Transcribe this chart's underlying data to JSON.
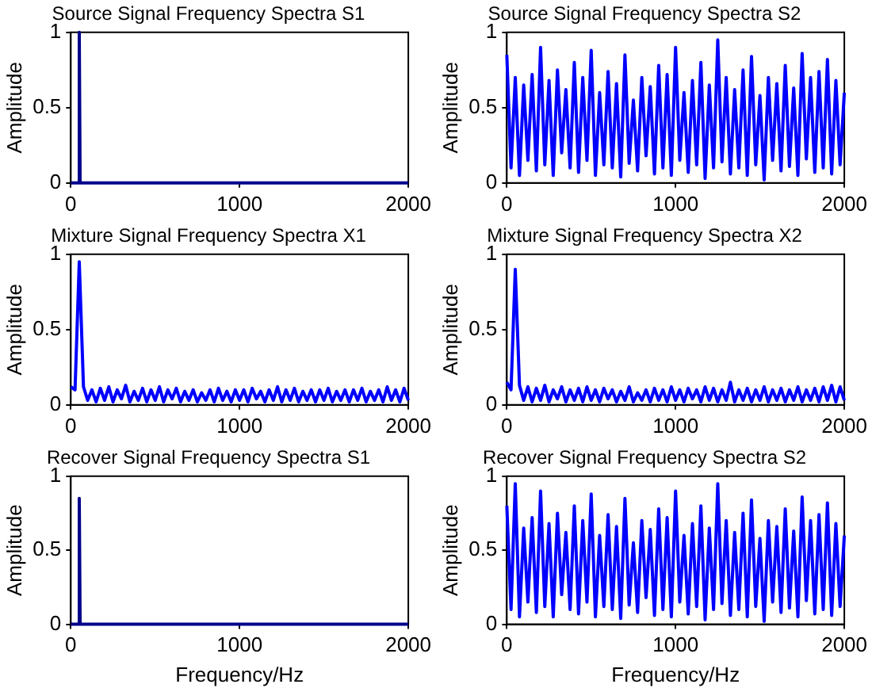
{
  "chart_data": [
    {
      "type": "line",
      "title": "Source Signal Frequency Spectra S1",
      "ylabel": "Amplitude",
      "x": [
        0,
        45,
        50,
        55,
        2000
      ],
      "values": [
        0,
        0,
        1,
        0,
        0
      ],
      "color": "#00008b",
      "xlim": [
        0,
        2000
      ],
      "xticks": [
        0,
        1000,
        2000
      ],
      "ylim": [
        0,
        1
      ],
      "yticks": [
        0,
        0.5,
        1
      ],
      "marker": "none",
      "grid": false
    },
    {
      "type": "line",
      "title": "Source Signal Frequency Spectra S2",
      "ylabel": "Amplitude",
      "x": [
        0,
        25,
        50,
        75,
        100,
        125,
        150,
        175,
        200,
        225,
        250,
        275,
        300,
        325,
        350,
        375,
        400,
        425,
        450,
        475,
        500,
        525,
        550,
        575,
        600,
        625,
        650,
        675,
        700,
        725,
        750,
        775,
        800,
        825,
        850,
        875,
        900,
        925,
        950,
        975,
        1000,
        1025,
        1050,
        1075,
        1100,
        1125,
        1150,
        1175,
        1200,
        1225,
        1250,
        1275,
        1300,
        1325,
        1350,
        1375,
        1400,
        1425,
        1450,
        1475,
        1500,
        1525,
        1550,
        1575,
        1600,
        1625,
        1650,
        1675,
        1700,
        1725,
        1750,
        1775,
        1800,
        1825,
        1850,
        1875,
        1900,
        1925,
        1950,
        1975,
        2000
      ],
      "values": [
        0.85,
        0.1,
        0.7,
        0.05,
        0.65,
        0.15,
        0.72,
        0.08,
        0.9,
        0.12,
        0.68,
        0.05,
        0.75,
        0.2,
        0.62,
        0.1,
        0.8,
        0.07,
        0.7,
        0.15,
        0.88,
        0.05,
        0.6,
        0.12,
        0.74,
        0.1,
        0.66,
        0.04,
        0.85,
        0.13,
        0.55,
        0.08,
        0.7,
        0.18,
        0.64,
        0.06,
        0.78,
        0.1,
        0.72,
        0.05,
        0.9,
        0.15,
        0.6,
        0.07,
        0.68,
        0.12,
        0.8,
        0.03,
        0.65,
        0.1,
        0.95,
        0.14,
        0.7,
        0.06,
        0.62,
        0.1,
        0.75,
        0.05,
        0.84,
        0.12,
        0.58,
        0.02,
        0.7,
        0.15,
        0.66,
        0.08,
        0.78,
        0.11,
        0.63,
        0.05,
        0.86,
        0.16,
        0.7,
        0.07,
        0.74,
        0.1,
        0.82,
        0.06,
        0.68,
        0.12,
        0.6
      ],
      "color": "#0000ff",
      "xlim": [
        0,
        2000
      ],
      "xticks": [
        0,
        1000,
        2000
      ],
      "ylim": [
        0,
        1
      ],
      "yticks": [
        0,
        0.5,
        1
      ],
      "marker": "none",
      "grid": false
    },
    {
      "type": "line",
      "title": "Mixture Signal Frequency Spectra X1",
      "ylabel": "Amplitude",
      "x": [
        0,
        25,
        50,
        75,
        100,
        125,
        150,
        175,
        200,
        225,
        250,
        275,
        300,
        325,
        350,
        375,
        400,
        425,
        450,
        475,
        500,
        525,
        550,
        575,
        600,
        625,
        650,
        675,
        700,
        725,
        750,
        775,
        800,
        825,
        850,
        875,
        900,
        925,
        950,
        975,
        1000,
        1025,
        1050,
        1075,
        1100,
        1125,
        1150,
        1175,
        1200,
        1225,
        1250,
        1275,
        1300,
        1325,
        1350,
        1375,
        1400,
        1425,
        1450,
        1475,
        1500,
        1525,
        1550,
        1575,
        1600,
        1625,
        1650,
        1675,
        1700,
        1725,
        1750,
        1775,
        1800,
        1825,
        1850,
        1875,
        1900,
        1925,
        1950,
        1975,
        2000
      ],
      "values": [
        0.12,
        0.1,
        0.95,
        0.12,
        0.03,
        0.1,
        0.02,
        0.11,
        0.03,
        0.12,
        0.02,
        0.1,
        0.04,
        0.13,
        0.02,
        0.09,
        0.03,
        0.11,
        0.02,
        0.1,
        0.03,
        0.12,
        0.02,
        0.1,
        0.04,
        0.11,
        0.02,
        0.09,
        0.03,
        0.1,
        0.02,
        0.08,
        0.03,
        0.1,
        0.02,
        0.11,
        0.03,
        0.09,
        0.02,
        0.1,
        0.03,
        0.1,
        0.02,
        0.11,
        0.04,
        0.09,
        0.02,
        0.1,
        0.03,
        0.12,
        0.02,
        0.1,
        0.03,
        0.11,
        0.02,
        0.09,
        0.03,
        0.1,
        0.02,
        0.1,
        0.03,
        0.11,
        0.02,
        0.09,
        0.03,
        0.1,
        0.02,
        0.1,
        0.03,
        0.11,
        0.02,
        0.09,
        0.03,
        0.1,
        0.02,
        0.12,
        0.03,
        0.1,
        0.02,
        0.11,
        0.03
      ],
      "color": "#0000ff",
      "xlim": [
        0,
        2000
      ],
      "xticks": [
        0,
        1000,
        2000
      ],
      "ylim": [
        0,
        1
      ],
      "yticks": [
        0,
        0.5,
        1
      ],
      "marker": "none",
      "grid": false
    },
    {
      "type": "line",
      "title": "Mixture Signal Frequency Spectra X2",
      "ylabel": "Amplitude",
      "x": [
        0,
        25,
        50,
        75,
        100,
        125,
        150,
        175,
        200,
        225,
        250,
        275,
        300,
        325,
        350,
        375,
        400,
        425,
        450,
        475,
        500,
        525,
        550,
        575,
        600,
        625,
        650,
        675,
        700,
        725,
        750,
        775,
        800,
        825,
        850,
        875,
        900,
        925,
        950,
        975,
        1000,
        1025,
        1050,
        1075,
        1100,
        1125,
        1150,
        1175,
        1200,
        1225,
        1250,
        1275,
        1300,
        1325,
        1350,
        1375,
        1400,
        1425,
        1450,
        1475,
        1500,
        1525,
        1550,
        1575,
        1600,
        1625,
        1650,
        1675,
        1700,
        1725,
        1750,
        1775,
        1800,
        1825,
        1850,
        1875,
        1900,
        1925,
        1950,
        1975,
        2000
      ],
      "values": [
        0.15,
        0.1,
        0.9,
        0.13,
        0.03,
        0.12,
        0.02,
        0.11,
        0.03,
        0.13,
        0.02,
        0.1,
        0.04,
        0.12,
        0.02,
        0.1,
        0.03,
        0.11,
        0.02,
        0.12,
        0.03,
        0.1,
        0.02,
        0.11,
        0.04,
        0.1,
        0.02,
        0.09,
        0.03,
        0.12,
        0.02,
        0.08,
        0.03,
        0.1,
        0.02,
        0.11,
        0.03,
        0.1,
        0.02,
        0.12,
        0.03,
        0.1,
        0.02,
        0.11,
        0.04,
        0.1,
        0.02,
        0.12,
        0.03,
        0.11,
        0.02,
        0.1,
        0.03,
        0.15,
        0.02,
        0.1,
        0.03,
        0.11,
        0.02,
        0.1,
        0.03,
        0.12,
        0.02,
        0.1,
        0.03,
        0.11,
        0.02,
        0.1,
        0.03,
        0.12,
        0.02,
        0.1,
        0.03,
        0.11,
        0.02,
        0.12,
        0.03,
        0.13,
        0.02,
        0.12,
        0.03
      ],
      "color": "#0000ff",
      "xlim": [
        0,
        2000
      ],
      "xticks": [
        0,
        1000,
        2000
      ],
      "ylim": [
        0,
        1
      ],
      "yticks": [
        0,
        0.5,
        1
      ],
      "marker": "none",
      "grid": false
    },
    {
      "type": "line",
      "title": "Recover Signal Frequency Spectra S1",
      "xlabel": "Frequency/Hz",
      "ylabel": "Amplitude",
      "x": [
        0,
        45,
        50,
        55,
        2000
      ],
      "values": [
        0,
        0,
        0.85,
        0,
        0
      ],
      "color": "#00008b",
      "xlim": [
        0,
        2000
      ],
      "xticks": [
        0,
        1000,
        2000
      ],
      "ylim": [
        0,
        1
      ],
      "yticks": [
        0,
        0.5,
        1
      ],
      "marker": "none",
      "grid": false
    },
    {
      "type": "line",
      "title": "Recover Signal Frequency Spectra S2",
      "xlabel": "Frequency/Hz",
      "ylabel": "Amplitude",
      "x": [
        0,
        25,
        50,
        75,
        100,
        125,
        150,
        175,
        200,
        225,
        250,
        275,
        300,
        325,
        350,
        375,
        400,
        425,
        450,
        475,
        500,
        525,
        550,
        575,
        600,
        625,
        650,
        675,
        700,
        725,
        750,
        775,
        800,
        825,
        850,
        875,
        900,
        925,
        950,
        975,
        1000,
        1025,
        1050,
        1075,
        1100,
        1125,
        1150,
        1175,
        1200,
        1225,
        1250,
        1275,
        1300,
        1325,
        1350,
        1375,
        1400,
        1425,
        1450,
        1475,
        1500,
        1525,
        1550,
        1575,
        1600,
        1625,
        1650,
        1675,
        1700,
        1725,
        1750,
        1775,
        1800,
        1825,
        1850,
        1875,
        1900,
        1925,
        1950,
        1975,
        2000
      ],
      "values": [
        0.8,
        0.1,
        0.95,
        0.05,
        0.65,
        0.15,
        0.72,
        0.08,
        0.9,
        0.12,
        0.68,
        0.05,
        0.75,
        0.2,
        0.62,
        0.1,
        0.8,
        0.07,
        0.7,
        0.15,
        0.88,
        0.05,
        0.6,
        0.12,
        0.74,
        0.1,
        0.66,
        0.04,
        0.85,
        0.13,
        0.55,
        0.08,
        0.7,
        0.18,
        0.64,
        0.06,
        0.78,
        0.1,
        0.72,
        0.05,
        0.9,
        0.15,
        0.6,
        0.07,
        0.68,
        0.12,
        0.8,
        0.03,
        0.65,
        0.1,
        0.95,
        0.14,
        0.7,
        0.06,
        0.62,
        0.1,
        0.75,
        0.05,
        0.84,
        0.12,
        0.58,
        0.02,
        0.7,
        0.15,
        0.66,
        0.08,
        0.78,
        0.11,
        0.63,
        0.05,
        0.86,
        0.16,
        0.7,
        0.07,
        0.74,
        0.1,
        0.82,
        0.06,
        0.68,
        0.12,
        0.6
      ],
      "color": "#0000ff",
      "xlim": [
        0,
        2000
      ],
      "xticks": [
        0,
        1000,
        2000
      ],
      "ylim": [
        0,
        1
      ],
      "yticks": [
        0,
        0.5,
        1
      ],
      "marker": "none",
      "grid": false
    }
  ]
}
